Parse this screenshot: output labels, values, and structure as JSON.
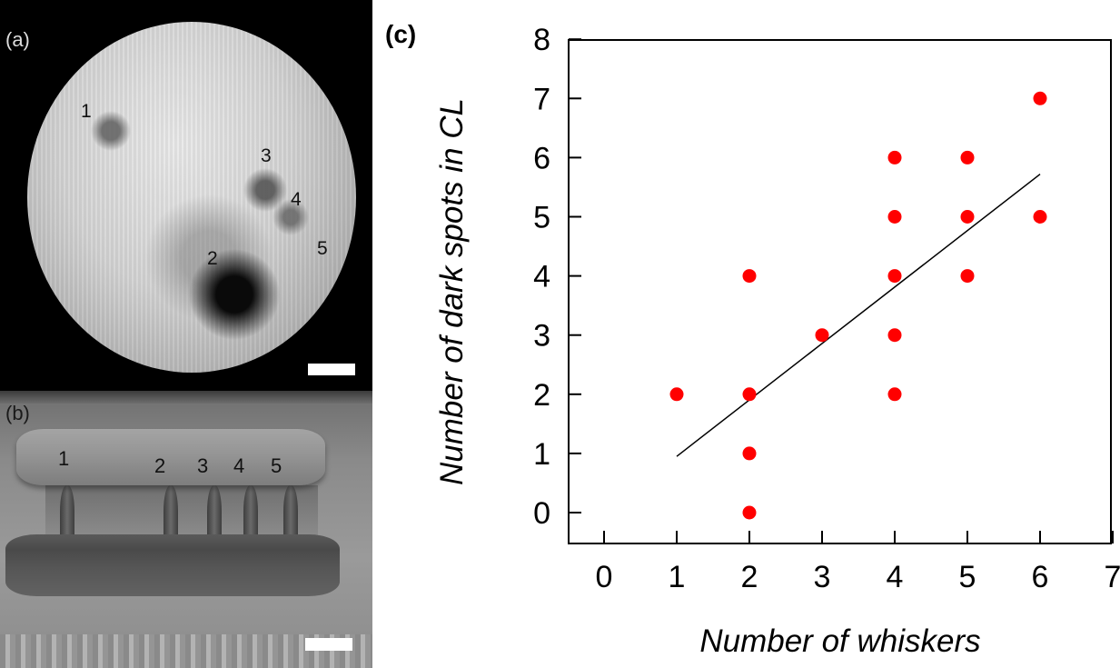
{
  "panel_a": {
    "label": "(a)",
    "spots": [
      "1",
      "2",
      "3",
      "4",
      "5"
    ]
  },
  "panel_b": {
    "label": "(b)",
    "whiskers": [
      "1",
      "2",
      "3",
      "4",
      "5"
    ]
  },
  "panel_c": {
    "label": "(c)"
  },
  "chart_data": {
    "type": "scatter",
    "xlabel": "Number of whiskers",
    "ylabel": "Number of dark spots in CL",
    "xlim": [
      0,
      7
    ],
    "ylim": [
      0,
      8
    ],
    "x_ticks": [
      "0",
      "1",
      "2",
      "3",
      "4",
      "5",
      "6",
      "7"
    ],
    "y_ticks": [
      "0",
      "1",
      "2",
      "3",
      "4",
      "5",
      "6",
      "7",
      "8"
    ],
    "grid": false,
    "marker_color": "#ff0000",
    "points": [
      {
        "x": 1,
        "y": 2
      },
      {
        "x": 2,
        "y": 4
      },
      {
        "x": 2,
        "y": 2
      },
      {
        "x": 2,
        "y": 1
      },
      {
        "x": 2,
        "y": 0
      },
      {
        "x": 3,
        "y": 3
      },
      {
        "x": 4,
        "y": 6
      },
      {
        "x": 4,
        "y": 5
      },
      {
        "x": 4,
        "y": 4
      },
      {
        "x": 4,
        "y": 3
      },
      {
        "x": 4,
        "y": 2
      },
      {
        "x": 5,
        "y": 6
      },
      {
        "x": 5,
        "y": 5
      },
      {
        "x": 5,
        "y": 4
      },
      {
        "x": 6,
        "y": 7
      },
      {
        "x": 6,
        "y": 5
      }
    ],
    "fit_line": {
      "x": [
        1,
        6
      ],
      "y": [
        0.95,
        5.72
      ]
    }
  }
}
